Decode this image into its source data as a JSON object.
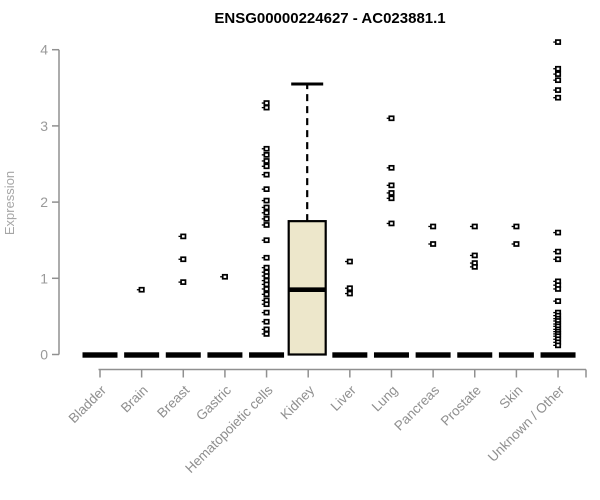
{
  "chart_data": {
    "type": "boxplot",
    "title": "ENSG00000224627 - AC023881.1",
    "ylabel": "Expression",
    "ylim": [
      0,
      4.3
    ],
    "yticks": [
      0,
      1,
      2,
      3,
      4
    ],
    "categories": [
      "Bladder",
      "Brain",
      "Breast",
      "Gastric",
      "Hematopoietic cells",
      "Kidney",
      "Liver",
      "Lung",
      "Pancreas",
      "Prostate",
      "Skin",
      "Unknown / Other"
    ],
    "groups": [
      {
        "label": "Bladder",
        "zero_bar": true,
        "box": null,
        "points": []
      },
      {
        "label": "Brain",
        "zero_bar": true,
        "box": null,
        "points": [
          0.85
        ]
      },
      {
        "label": "Breast",
        "zero_bar": true,
        "box": null,
        "points": [
          1.55,
          1.25,
          0.95
        ]
      },
      {
        "label": "Gastric",
        "zero_bar": true,
        "box": null,
        "points": [
          1.02
        ]
      },
      {
        "label": "Hematopoietic cells",
        "zero_bar": true,
        "box": null,
        "points": [
          3.3,
          3.24,
          2.7,
          2.62,
          2.54,
          2.47,
          2.36,
          2.17,
          2.02,
          1.93,
          1.86,
          1.78,
          1.7,
          1.5,
          1.27,
          1.14,
          1.08,
          1.03,
          0.97,
          0.92,
          0.86,
          0.79,
          0.71,
          0.66,
          0.55,
          0.43,
          0.33,
          0.27
        ]
      },
      {
        "label": "Kidney",
        "zero_bar": false,
        "box": {
          "q1": 0,
          "median": 0.85,
          "q3": 1.75,
          "whisker_high": 3.55
        },
        "points": []
      },
      {
        "label": "Liver",
        "zero_bar": true,
        "box": null,
        "points": [
          1.22,
          0.87,
          0.8
        ]
      },
      {
        "label": "Lung",
        "zero_bar": true,
        "box": null,
        "points": [
          3.1,
          2.45,
          2.22,
          2.12,
          2.05,
          1.72
        ]
      },
      {
        "label": "Pancreas",
        "zero_bar": true,
        "box": null,
        "points": [
          1.68,
          1.45
        ]
      },
      {
        "label": "Prostate",
        "zero_bar": true,
        "box": null,
        "points": [
          1.68,
          1.3,
          1.2,
          1.15
        ]
      },
      {
        "label": "Skin",
        "zero_bar": true,
        "box": null,
        "points": [
          1.68,
          1.45
        ]
      },
      {
        "label": "Unknown / Other",
        "zero_bar": true,
        "box": null,
        "points": [
          4.1,
          3.75,
          3.68,
          3.6,
          3.47,
          3.37,
          1.6,
          1.35,
          1.25,
          0.96,
          0.91,
          0.86,
          0.7,
          0.55,
          0.51,
          0.47,
          0.44,
          0.4,
          0.37,
          0.33,
          0.3,
          0.27,
          0.24,
          0.2,
          0.16,
          0.12
        ]
      }
    ],
    "colors": {
      "box_fill": "#EDE7CB",
      "ink": "#000000",
      "axis": "#909090",
      "tick_label": "#999999",
      "axis_label": "#a6a6a6"
    },
    "layout": {
      "legend": false,
      "grid": false
    }
  }
}
